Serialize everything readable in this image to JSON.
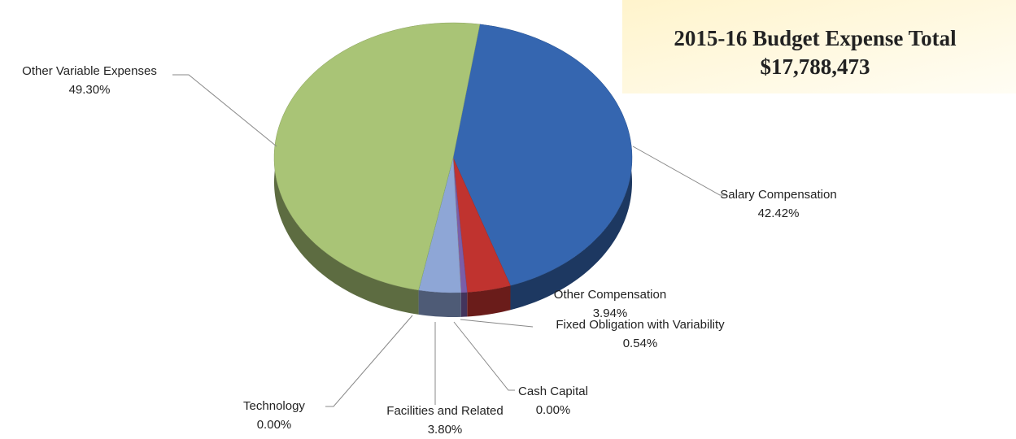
{
  "chart_data": {
    "type": "pie",
    "title": "2015-16 Budget Expense Total",
    "subtitle": "$17,788,473",
    "categories": [
      "Salary Compensation",
      "Other Compensation",
      "Fixed Obligation with Variability",
      "Cash Capital",
      "Facilities and Related",
      "Technology",
      "Other Variable Expenses"
    ],
    "values": [
      42.42,
      3.94,
      0.54,
      0.0,
      3.8,
      0.0,
      49.3
    ],
    "value_labels": [
      "42.42%",
      "3.94%",
      "0.54%",
      "0.00%",
      "3.80%",
      "0.00%",
      "49.30%"
    ],
    "colors": [
      "#3566b0",
      "#c0332f",
      "#7a5ea8",
      "#e58a2e",
      "#8ea6d6",
      "#4bacc6",
      "#a9c476"
    ]
  }
}
